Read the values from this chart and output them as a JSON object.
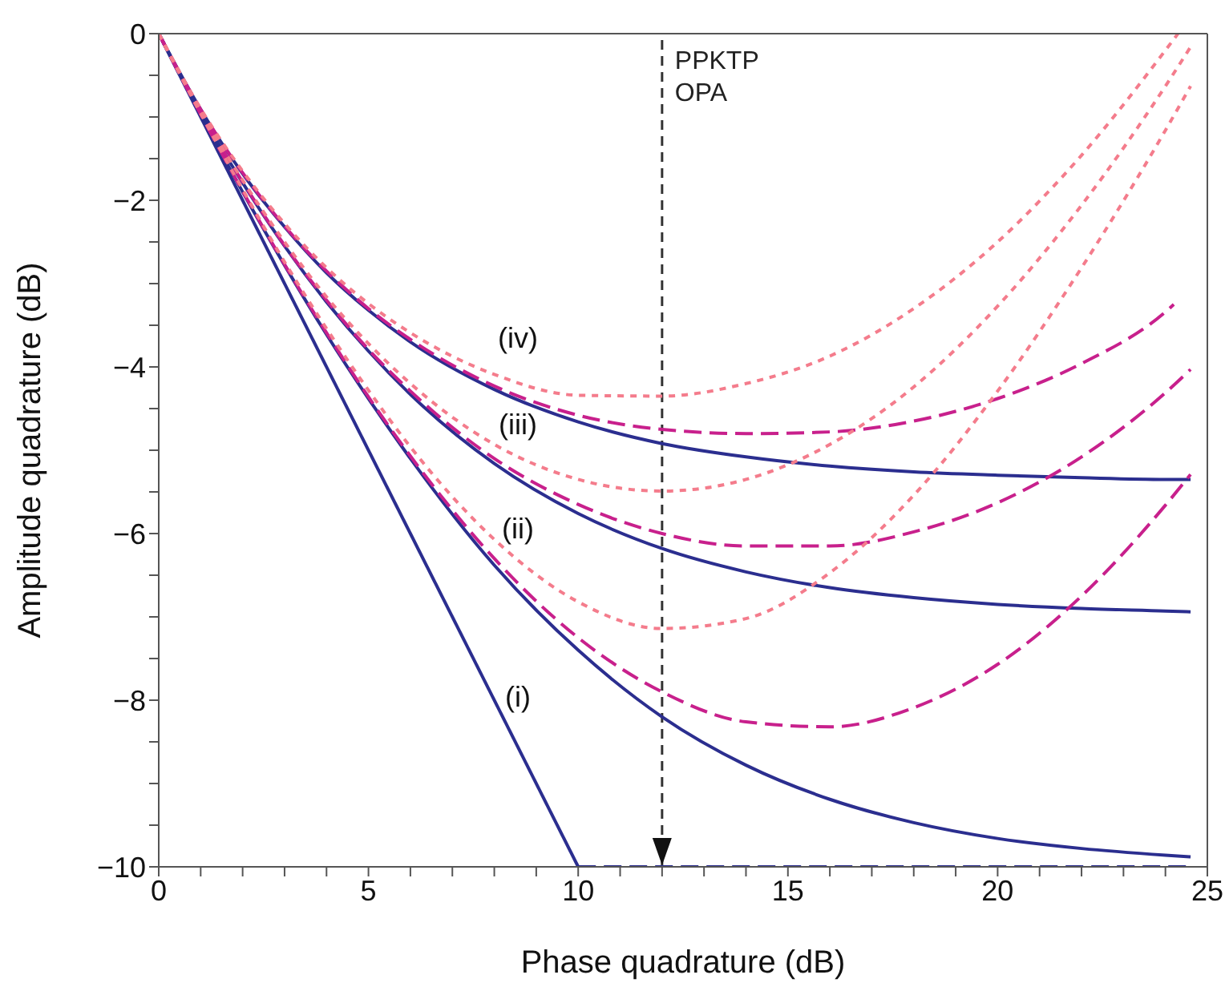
{
  "chart_data": {
    "type": "line",
    "xlabel": "Phase quadrature (dB)",
    "ylabel": "Amplitude quadrature (dB)",
    "xlim": [
      0,
      25
    ],
    "xticks": [
      0,
      {
        "value": 1,
        "label": null
      },
      {
        "value": 2,
        "label": null
      },
      {
        "value": 3,
        "label": null
      },
      {
        "value": 4,
        "label": null
      },
      5,
      {
        "value": 6,
        "label": null
      },
      {
        "value": 7,
        "label": null
      },
      {
        "value": 8,
        "label": null
      },
      {
        "value": 9,
        "label": null
      },
      10,
      {
        "value": 11,
        "label": null
      },
      {
        "value": 12,
        "label": null
      },
      {
        "value": 13,
        "label": null
      },
      {
        "value": 14,
        "label": null
      },
      15,
      {
        "value": 16,
        "label": null
      },
      {
        "value": 17,
        "label": null
      },
      {
        "value": 18,
        "label": null
      },
      {
        "value": 19,
        "label": null
      },
      20,
      {
        "value": 21,
        "label": null
      },
      {
        "value": 22,
        "label": null
      },
      {
        "value": 23,
        "label": null
      },
      {
        "value": 24,
        "label": null
      },
      25
    ],
    "ylim": [
      -10,
      0
    ],
    "yticks": [
      {
        "value": -10,
        "label": "−10"
      },
      {
        "value": -9.5,
        "label": null
      },
      {
        "value": -9,
        "label": null
      },
      {
        "value": -8.5,
        "label": null
      },
      {
        "value": -8,
        "label": "−8"
      },
      {
        "value": -7.5,
        "label": null
      },
      {
        "value": -7,
        "label": null
      },
      {
        "value": -6.5,
        "label": null
      },
      {
        "value": -6,
        "label": "−6"
      },
      {
        "value": -5.5,
        "label": null
      },
      {
        "value": -5,
        "label": null
      },
      {
        "value": -4.5,
        "label": null
      },
      {
        "value": -4,
        "label": "−4"
      },
      {
        "value": -3.5,
        "label": null
      },
      {
        "value": -3,
        "label": null
      },
      {
        "value": -2.5,
        "label": null
      },
      {
        "value": -2,
        "label": "−2"
      },
      {
        "value": -1.5,
        "label": null
      },
      {
        "value": -1,
        "label": null
      },
      {
        "value": -0.5,
        "label": null
      },
      0
    ],
    "series": [
      {
        "color": "#2b2e8f",
        "line_style": "solid",
        "x": [
          0,
          10
        ],
        "values": [
          0,
          -10
        ]
      },
      {
        "color": "#2b2e8f",
        "line_style": "dashed",
        "x": [
          10,
          24.6
        ],
        "values": [
          -10,
          -10
        ]
      },
      {
        "color": "#2b2e8f",
        "line_style": "solid",
        "x": [
          0,
          1,
          2,
          3,
          4,
          5,
          6,
          8,
          10,
          12,
          14,
          16,
          18,
          20,
          22,
          24,
          24.6
        ],
        "values": [
          0,
          -0.97,
          -1.9,
          -2.78,
          -3.61,
          -4.38,
          -5.1,
          -6.38,
          -7.4,
          -8.2,
          -8.78,
          -9.19,
          -9.47,
          -9.66,
          -9.78,
          -9.86,
          -9.88
        ]
      },
      {
        "color": "#2b2e8f",
        "line_style": "solid",
        "x": [
          0,
          1,
          2,
          3,
          4,
          5,
          6,
          8,
          10,
          12,
          14,
          16,
          18,
          20,
          22,
          24,
          24.6
        ],
        "values": [
          0,
          -0.95,
          -1.79,
          -2.55,
          -3.22,
          -3.81,
          -4.33,
          -5.16,
          -5.76,
          -6.18,
          -6.46,
          -6.65,
          -6.77,
          -6.85,
          -6.9,
          -6.93,
          -6.94
        ]
      },
      {
        "color": "#2b2e8f",
        "line_style": "solid",
        "x": [
          0,
          1,
          2,
          3,
          4,
          5,
          6,
          8,
          10,
          12,
          14,
          16,
          18,
          20,
          22,
          24,
          24.6
        ],
        "values": [
          0,
          -0.91,
          -1.68,
          -2.32,
          -2.87,
          -3.32,
          -3.7,
          -4.27,
          -4.66,
          -4.92,
          -5.08,
          -5.19,
          -5.26,
          -5.3,
          -5.33,
          -5.35,
          -5.35
        ]
      },
      {
        "color": "#c8208c",
        "line_style": "dashed",
        "x": [
          0,
          1,
          2,
          3,
          4,
          5,
          6,
          8,
          10,
          12,
          14,
          16,
          18,
          20,
          22,
          24,
          24.6
        ],
        "values": [
          0,
          -0.97,
          -1.89,
          -2.77,
          -3.59,
          -4.36,
          -5.07,
          -6.3,
          -7.25,
          -7.9,
          -8.26,
          -8.32,
          -8.09,
          -7.57,
          -6.75,
          -5.66,
          -5.29
        ]
      },
      {
        "color": "#c8208c",
        "line_style": "dashed",
        "x": [
          0,
          1,
          2,
          3,
          4,
          5,
          6,
          8,
          10,
          12,
          14,
          16,
          18,
          20,
          22,
          24,
          24.6
        ],
        "values": [
          0,
          -0.94,
          -1.78,
          -2.54,
          -3.2,
          -3.79,
          -4.29,
          -5.1,
          -5.65,
          -6,
          -6.15,
          -6.15,
          -5.98,
          -5.63,
          -5.08,
          -4.31,
          -4.03
        ]
      },
      {
        "color": "#c8208c",
        "line_style": "dashed",
        "x": [
          0,
          1,
          2,
          3,
          4,
          5,
          6,
          8,
          10,
          12,
          14,
          16,
          18,
          20,
          22,
          24,
          24.2
        ],
        "values": [
          0,
          -0.91,
          -1.67,
          -2.31,
          -2.85,
          -3.3,
          -3.67,
          -4.23,
          -4.58,
          -4.75,
          -4.8,
          -4.78,
          -4.65,
          -4.38,
          -3.96,
          -3.34,
          -3.25
        ]
      },
      {
        "color": "#f47c8c",
        "line_style": "dotted",
        "x": [
          0,
          1,
          2,
          3,
          4,
          5,
          6,
          8,
          10,
          12,
          14,
          16,
          18,
          20,
          22,
          24,
          24.6
        ],
        "values": [
          0,
          -0.96,
          -1.87,
          -2.74,
          -3.54,
          -4.28,
          -4.96,
          -6.07,
          -6.82,
          -7.14,
          -7.02,
          -6.47,
          -5.54,
          -4.29,
          -2.81,
          -1.16,
          -0.63
        ]
      },
      {
        "color": "#f47c8c",
        "line_style": "dotted",
        "x": [
          0,
          1,
          2,
          3,
          4,
          5,
          6,
          8,
          10,
          12,
          14,
          16,
          18,
          20,
          22,
          24,
          24.6
        ],
        "values": [
          0,
          -0.93,
          -1.76,
          -2.5,
          -3.16,
          -3.72,
          -4.2,
          -4.93,
          -5.35,
          -5.49,
          -5.35,
          -4.93,
          -4.24,
          -3.27,
          -2.06,
          -0.63,
          -0.16
        ]
      },
      {
        "color": "#f47c8c",
        "line_style": "dotted",
        "x": [
          0,
          1,
          2,
          3,
          4,
          5,
          6,
          8,
          10,
          12,
          14,
          16,
          18,
          20,
          22,
          24,
          24.3
        ],
        "values": [
          0,
          -0.9,
          -1.65,
          -2.28,
          -2.81,
          -3.24,
          -3.59,
          -4.09,
          -4.34,
          -4.35,
          -4.2,
          -3.87,
          -3.3,
          -2.5,
          -1.46,
          -0.2,
          0
        ]
      }
    ],
    "ref_lines": [
      {
        "axis": "x",
        "value": 12,
        "label": "PPKTP OPA",
        "color": "#333333",
        "line_style": "dashed"
      }
    ],
    "annotations": [
      "(i)",
      "(ii)",
      "(iii)",
      "(iv)"
    ]
  }
}
